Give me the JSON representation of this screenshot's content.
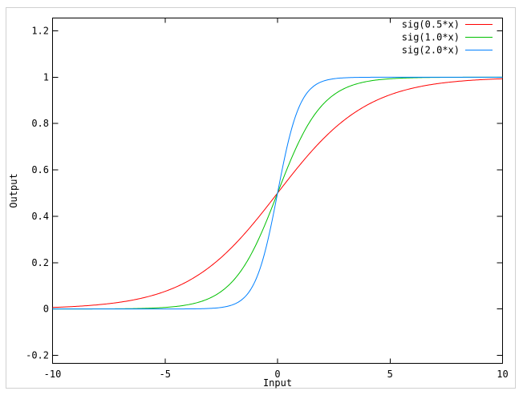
{
  "window": {
    "background": "#ffffff",
    "frame_border_color": "#d0d0d0"
  },
  "chart_data": {
    "type": "line",
    "title": "",
    "xlabel": "Input",
    "ylabel": "Output",
    "xlim": [
      -10,
      10
    ],
    "ylim": [
      -0.2,
      1.2
    ],
    "x_ticks": [
      -10,
      -5,
      0,
      5,
      10
    ],
    "x_tick_labels": [
      "-10",
      "-5",
      "0",
      "5",
      "10"
    ],
    "y_ticks": [
      -0.2,
      0,
      0.2,
      0.4,
      0.6,
      0.8,
      1.0,
      1.2
    ],
    "y_tick_labels": [
      "-0.2",
      "0",
      "0.2",
      "0.4",
      "0.6",
      "0.8",
      "1",
      "1.2"
    ],
    "grid": false,
    "legend_position": "top-right-inside",
    "axis_color": "#000000",
    "text_color": "#000000",
    "curve_formula": "y = 1 / (1 + exp(-k * x))",
    "series": [
      {
        "name": "sig(0.5*x)",
        "k": 0.5,
        "color": "#ff0000"
      },
      {
        "name": "sig(1.0*x)",
        "k": 1.0,
        "color": "#00c000"
      },
      {
        "name": "sig(2.0*x)",
        "k": 2.0,
        "color": "#0080ff"
      }
    ]
  }
}
